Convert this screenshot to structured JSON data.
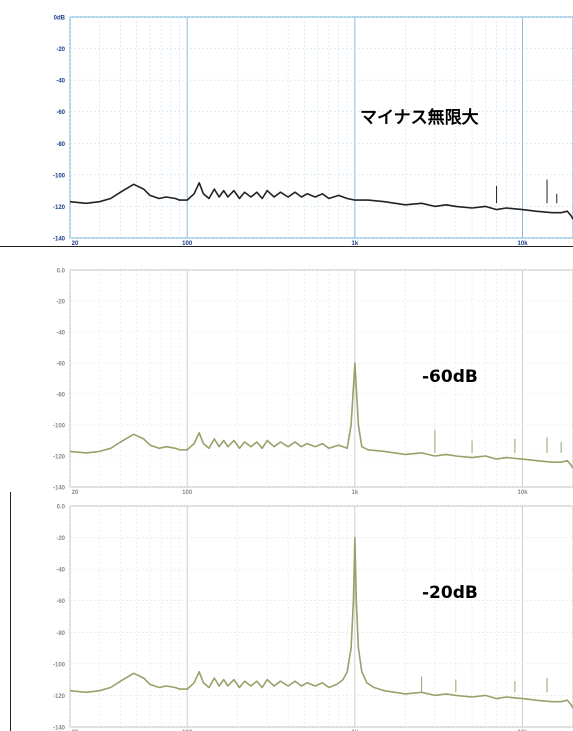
{
  "chart_data": [
    {
      "type": "line",
      "title": "マイナス無限大",
      "x_scale": "log",
      "xlim": [
        20,
        20000
      ],
      "ylim": [
        -140,
        0
      ],
      "x_ticks": [
        {
          "value": 20,
          "label": "20"
        },
        {
          "value": 100,
          "label": "100"
        },
        {
          "value": 1000,
          "label": "1k"
        },
        {
          "value": 10000,
          "label": "10k"
        }
      ],
      "y_ticks": [
        {
          "value": 0,
          "label": "0dB"
        },
        {
          "value": -20,
          "label": "-20"
        },
        {
          "value": -40,
          "label": "-40"
        },
        {
          "value": -60,
          "label": "-60"
        },
        {
          "value": -80,
          "label": "-80"
        },
        {
          "value": -100,
          "label": "-100"
        },
        {
          "value": -120,
          "label": "-120"
        },
        {
          "value": -140,
          "label": "-140"
        }
      ],
      "grid": true,
      "frame_color": "#7ab8dd",
      "grid_color": "#c8dff0",
      "series": [
        {
          "color": "#222222",
          "x": [
            20,
            25,
            30,
            35,
            40,
            48,
            55,
            60,
            68,
            75,
            85,
            90,
            100,
            110,
            118,
            125,
            135,
            145,
            155,
            165,
            175,
            190,
            205,
            220,
            240,
            260,
            280,
            300,
            330,
            360,
            400,
            440,
            480,
            520,
            580,
            640,
            700,
            800,
            900,
            1000,
            1200,
            1500,
            2000,
            2500,
            3000,
            3500,
            4000,
            5000,
            6000,
            7000,
            8000,
            10000,
            12000,
            15000,
            17000,
            18500,
            19500,
            20000
          ],
          "y": [
            -117,
            -118,
            -117,
            -115,
            -111,
            -106,
            -109,
            -113,
            -115,
            -114,
            -115,
            -116,
            -116,
            -112,
            -105,
            -112,
            -115,
            -109,
            -114,
            -110,
            -114,
            -110,
            -115,
            -111,
            -114,
            -111,
            -115,
            -110,
            -114,
            -111,
            -114,
            -111,
            -114,
            -112,
            -114,
            -112,
            -115,
            -113,
            -115,
            -116,
            -116,
            -117,
            -119,
            -118,
            -120,
            -119,
            -120,
            -121,
            -120,
            -122,
            -121,
            -122,
            -123,
            -124,
            -124,
            -123,
            -126,
            -128
          ]
        }
      ],
      "spikes": [
        {
          "x": 7000,
          "y": -107
        },
        {
          "x": 14000,
          "y": -103
        },
        {
          "x": 16000,
          "y": -112
        }
      ]
    },
    {
      "type": "line",
      "title": "-60dB",
      "x_scale": "log",
      "xlim": [
        20,
        20000
      ],
      "ylim": [
        -140,
        0
      ],
      "x_ticks": [
        {
          "value": 20,
          "label": "20"
        },
        {
          "value": 100,
          "label": "100"
        },
        {
          "value": 1000,
          "label": "1k"
        },
        {
          "value": 10000,
          "label": "10k"
        }
      ],
      "y_ticks": [
        {
          "value": 0,
          "label": "0.0"
        },
        {
          "value": -20,
          "label": "-20"
        },
        {
          "value": -40,
          "label": "-40"
        },
        {
          "value": -60,
          "label": "-60"
        },
        {
          "value": -80,
          "label": "-80"
        },
        {
          "value": -100,
          "label": "-100"
        },
        {
          "value": -120,
          "label": "-120"
        },
        {
          "value": -140,
          "label": "-140"
        }
      ],
      "grid": true,
      "frame_color": "#c8c8c8",
      "grid_color": "#e4e4e4",
      "series": [
        {
          "color": "#9aa06a",
          "x": [
            20,
            25,
            30,
            35,
            40,
            48,
            55,
            60,
            68,
            75,
            85,
            90,
            100,
            110,
            118,
            125,
            135,
            145,
            155,
            165,
            175,
            190,
            205,
            220,
            240,
            260,
            280,
            300,
            330,
            360,
            400,
            440,
            480,
            520,
            580,
            640,
            700,
            800,
            900,
            950,
            1000,
            1050,
            1100,
            1200,
            1500,
            2000,
            2500,
            3000,
            3500,
            4000,
            5000,
            6000,
            7000,
            8000,
            10000,
            12000,
            15000,
            17000,
            18500,
            19500,
            20000
          ],
          "y": [
            -117,
            -118,
            -117,
            -115,
            -111,
            -106,
            -109,
            -113,
            -115,
            -114,
            -115,
            -116,
            -116,
            -112,
            -105,
            -112,
            -115,
            -109,
            -114,
            -110,
            -114,
            -110,
            -115,
            -111,
            -114,
            -111,
            -115,
            -110,
            -114,
            -111,
            -114,
            -111,
            -114,
            -112,
            -114,
            -112,
            -115,
            -113,
            -115,
            -100,
            -60,
            -100,
            -114,
            -116,
            -117,
            -119,
            -118,
            -120,
            -119,
            -120,
            -121,
            -120,
            -122,
            -121,
            -122,
            -123,
            -124,
            -124,
            -123,
            -126,
            -128
          ]
        }
      ],
      "spikes": [
        {
          "x": 3000,
          "y": -103
        },
        {
          "x": 5000,
          "y": -110
        },
        {
          "x": 9000,
          "y": -109
        },
        {
          "x": 14000,
          "y": -108
        },
        {
          "x": 17000,
          "y": -111
        }
      ]
    },
    {
      "type": "line",
      "title": "-20dB",
      "x_scale": "log",
      "xlim": [
        20,
        20000
      ],
      "ylim": [
        -140,
        0
      ],
      "x_ticks": [
        {
          "value": 20,
          "label": "20"
        },
        {
          "value": 100,
          "label": "100"
        },
        {
          "value": 1000,
          "label": "1k"
        },
        {
          "value": 10000,
          "label": "10k"
        }
      ],
      "y_ticks": [
        {
          "value": 0,
          "label": "0.0"
        },
        {
          "value": -20,
          "label": "-20"
        },
        {
          "value": -40,
          "label": "-40"
        },
        {
          "value": -60,
          "label": "-60"
        },
        {
          "value": -80,
          "label": "-80"
        },
        {
          "value": -100,
          "label": "-100"
        },
        {
          "value": -120,
          "label": "-120"
        },
        {
          "value": -140,
          "label": "-140"
        }
      ],
      "grid": true,
      "frame_color": "#c8c8c8",
      "grid_color": "#e4e4e4",
      "series": [
        {
          "color": "#9aa06a",
          "x": [
            20,
            25,
            30,
            35,
            40,
            48,
            55,
            60,
            68,
            75,
            85,
            90,
            100,
            110,
            118,
            125,
            135,
            145,
            155,
            165,
            175,
            190,
            205,
            220,
            240,
            260,
            280,
            300,
            330,
            360,
            400,
            440,
            480,
            520,
            580,
            640,
            700,
            780,
            850,
            900,
            950,
            980,
            1000,
            1020,
            1050,
            1100,
            1180,
            1300,
            1500,
            2000,
            2500,
            3000,
            3500,
            4000,
            5000,
            6000,
            7000,
            8000,
            10000,
            12000,
            15000,
            17000,
            18500,
            19500,
            20000
          ],
          "y": [
            -117,
            -118,
            -117,
            -115,
            -111,
            -106,
            -109,
            -113,
            -115,
            -114,
            -115,
            -116,
            -116,
            -112,
            -105,
            -112,
            -115,
            -109,
            -114,
            -110,
            -114,
            -110,
            -115,
            -111,
            -114,
            -111,
            -115,
            -110,
            -114,
            -111,
            -114,
            -111,
            -114,
            -112,
            -114,
            -112,
            -115,
            -113,
            -110,
            -105,
            -90,
            -60,
            -20,
            -60,
            -90,
            -105,
            -112,
            -115,
            -117,
            -119,
            -118,
            -120,
            -119,
            -120,
            -121,
            -120,
            -122,
            -121,
            -122,
            -123,
            -124,
            -124,
            -123,
            -126,
            -128
          ]
        }
      ],
      "spikes": [
        {
          "x": 2500,
          "y": -108
        },
        {
          "x": 4000,
          "y": -110
        },
        {
          "x": 9000,
          "y": -111
        },
        {
          "x": 14000,
          "y": -109
        }
      ]
    }
  ]
}
